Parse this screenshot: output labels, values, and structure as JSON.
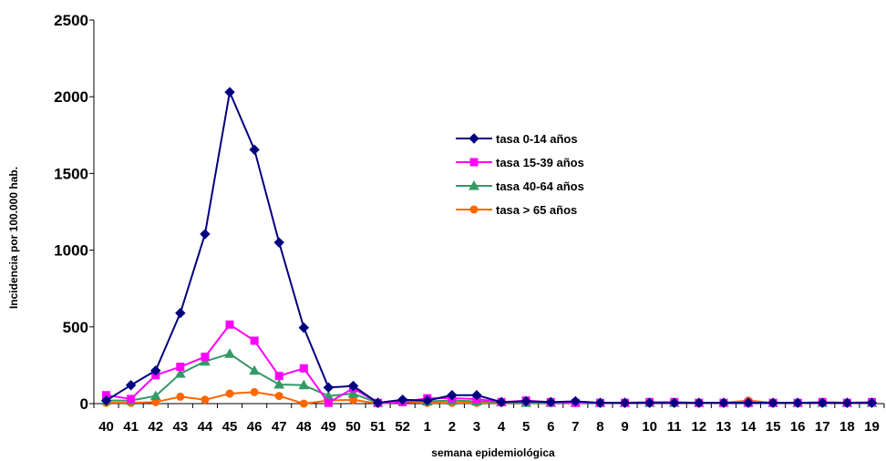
{
  "chart_data": {
    "type": "line",
    "categories": [
      "40",
      "41",
      "42",
      "43",
      "44",
      "45",
      "46",
      "47",
      "48",
      "49",
      "50",
      "51",
      "52",
      "1",
      "2",
      "3",
      "4",
      "5",
      "6",
      "7",
      "8",
      "9",
      "10",
      "11",
      "12",
      "13",
      "14",
      "15",
      "16",
      "17",
      "18",
      "19"
    ],
    "xlabel": "semana epidemiológica",
    "ylabel": "Incidencia por 100.000 hab.",
    "ylim": [
      0,
      2500
    ],
    "yticks": [
      "0",
      "500",
      "1000",
      "1500",
      "2000",
      "2500"
    ],
    "grid": false,
    "legend_position": "right-center",
    "series": [
      {
        "name": "tasa 0-14 años",
        "color": "#000080",
        "marker": "diamond",
        "values": [
          20,
          120,
          215,
          590,
          1105,
          2030,
          1655,
          1050,
          495,
          105,
          115,
          5,
          25,
          20,
          55,
          55,
          10,
          15,
          10,
          15,
          5,
          5,
          5,
          5,
          5,
          5,
          5,
          5,
          5,
          5,
          5,
          5
        ]
      },
      {
        "name": "tasa 15-39 años",
        "color": "#FF00FF",
        "marker": "square",
        "values": [
          55,
          30,
          185,
          240,
          305,
          515,
          410,
          180,
          230,
          5,
          100,
          5,
          10,
          35,
          35,
          30,
          10,
          20,
          10,
          5,
          5,
          5,
          10,
          10,
          5,
          5,
          5,
          5,
          5,
          10,
          5,
          10
        ]
      },
      {
        "name": "tasa 40-64 años",
        "color": "#339966",
        "marker": "triangle",
        "values": [
          20,
          20,
          50,
          195,
          275,
          325,
          215,
          125,
          120,
          50,
          65,
          5,
          20,
          15,
          20,
          15,
          10,
          5,
          5,
          5,
          5,
          5,
          5,
          5,
          5,
          5,
          5,
          5,
          5,
          5,
          5,
          5
        ]
      },
      {
        "name": "tasa > 65 años",
        "color": "#FF6600",
        "marker": "circle",
        "values": [
          5,
          5,
          10,
          45,
          25,
          65,
          75,
          50,
          0,
          20,
          25,
          0,
          10,
          5,
          5,
          5,
          5,
          5,
          5,
          5,
          5,
          5,
          5,
          5,
          5,
          5,
          20,
          5,
          5,
          5,
          5,
          5
        ]
      }
    ]
  }
}
